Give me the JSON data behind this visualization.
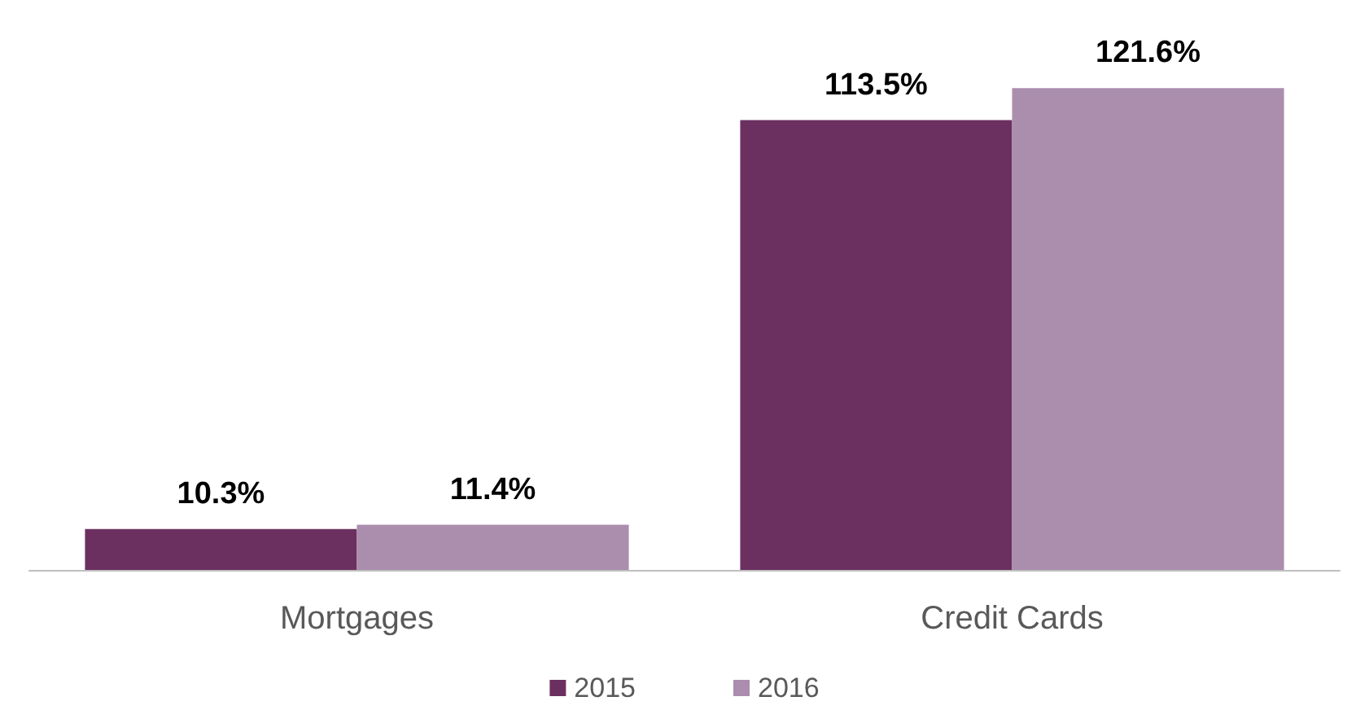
{
  "chart_data": {
    "type": "bar",
    "categories": [
      "Mortgages",
      "Credit Cards"
    ],
    "series": [
      {
        "name": "2015",
        "color": "#6b3060",
        "values": [
          10.3,
          113.5
        ],
        "value_labels": [
          "10.3%",
          "113.5%"
        ]
      },
      {
        "name": "2016",
        "color": "#ab8dad",
        "values": [
          11.4,
          121.6
        ],
        "value_labels": [
          "11.4%",
          "121.6%"
        ]
      }
    ],
    "legend": "bottom",
    "grid": false
  }
}
